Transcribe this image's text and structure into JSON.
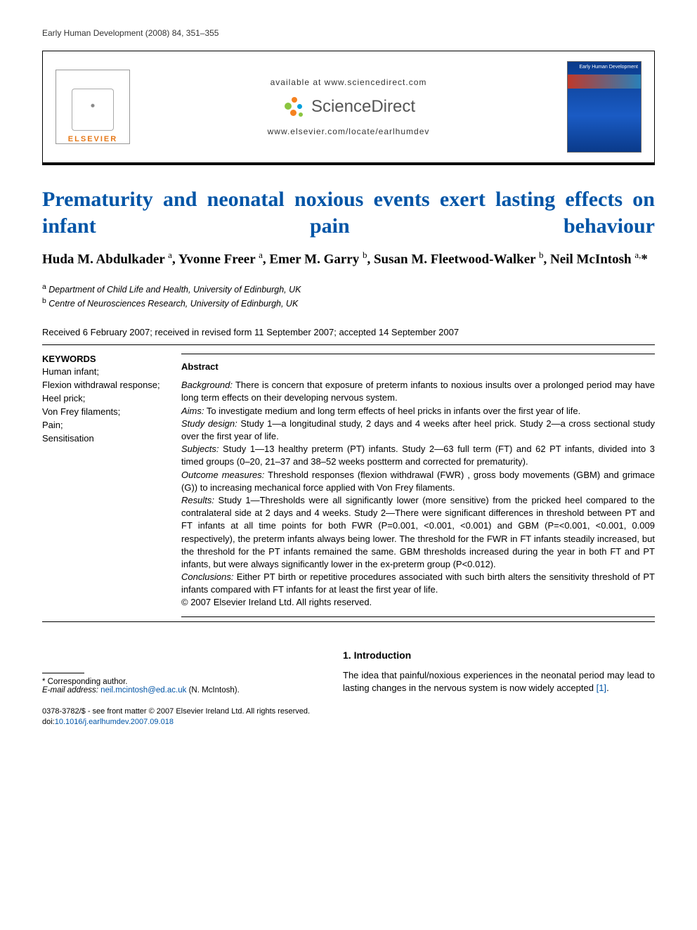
{
  "running_head": "Early Human Development (2008) 84, 351–355",
  "header": {
    "available_at": "available at www.sciencedirect.com",
    "sd_name": "ScienceDirect",
    "locate": "www.elsevier.com/locate/earlhumdev",
    "publisher_name": "ELSEVIER",
    "cover_caption": "Early Human Development",
    "sd_dot_colors": [
      "#f58220",
      "#8bc53f",
      "#00a0dc",
      "#f58220",
      "#8bc53f"
    ],
    "cover_bg": "#0a3a8a"
  },
  "title": "Prematurity and neonatal noxious events exert lasting effects on infant pain behaviour",
  "authors_html": "Huda M. Abdulkader <sup>a</sup>, Yvonne Freer <sup>a</sup>, Emer M. Garry <sup>b</sup>, Susan M. Fleetwood-Walker <sup>b</sup>, Neil McIntosh <sup>a,</sup>*",
  "affiliations": [
    {
      "marker": "a",
      "text": "Department of Child Life and Health, University of Edinburgh, UK"
    },
    {
      "marker": "b",
      "text": "Centre of Neurosciences Research, University of Edinburgh, UK"
    }
  ],
  "dates": "Received 6 February 2007; received in revised form 11 September 2007; accepted 14 September 2007",
  "keywords_head": "KEYWORDS",
  "keywords": "Human infant;\nFlexion withdrawal response;\nHeel prick;\nVon Frey filaments;\nPain;\nSensitisation",
  "abstract_head": "Abstract",
  "abstract": {
    "background_lbl": "Background:",
    "background": "There is concern that exposure of preterm infants to noxious insults over a prolonged period may have long term effects on their developing nervous system.",
    "aims_lbl": "Aims:",
    "aims": "To investigate medium and long term effects of heel pricks in infants over the first year of life.",
    "design_lbl": "Study design:",
    "design": "Study 1—a longitudinal study, 2 days and 4 weeks after heel prick. Study 2—a cross sectional study over the first year of life.",
    "subjects_lbl": "Subjects:",
    "subjects": "Study 1—13 healthy preterm (PT) infants. Study 2—63 full term (FT) and 62 PT infants, divided into 3 timed groups (0–20, 21–37 and 38–52 weeks postterm and corrected for prematurity).",
    "outcome_lbl": "Outcome measures:",
    "outcome": "Threshold responses (flexion withdrawal (FWR) , gross body movements (GBM) and grimace (G)) to increasing mechanical force applied with Von Frey filaments.",
    "results_lbl": "Results:",
    "results": "Study 1—Thresholds were all significantly lower (more sensitive) from the pricked heel compared to the contralateral side at 2 days and 4 weeks. Study 2—There were significant differences in threshold between PT and FT infants at all time points for both FWR (P=0.001, <0.001, <0.001) and GBM (P=<0.001, <0.001, 0.009 respectively), the preterm infants always being lower. The threshold for the FWR in FT infants steadily increased, but the threshold for the PT infants remained the same. GBM thresholds increased during the year in both FT and PT infants, but were always significantly lower in the ex-preterm group (P<0.012).",
    "conclusions_lbl": "Conclusions:",
    "conclusions": "Either PT birth or repetitive procedures associated with such birth alters the sensitivity threshold of PT infants compared with FT infants for at least the first year of life.",
    "copyright": "© 2007 Elsevier Ireland Ltd. All rights reserved."
  },
  "section1_head": "1. Introduction",
  "intro_text": "The idea that painful/noxious experiences in the neonatal period may lead to lasting changes in the nervous system is now widely accepted ",
  "intro_ref": "[1]",
  "intro_tail": ".",
  "corresponding_lbl": "* Corresponding author.",
  "email_lbl": "E-mail address:",
  "email": "neil.mcintosh@ed.ac.uk",
  "email_who": "(N. McIntosh).",
  "footer_line1": "0378-3782/$ - see front matter © 2007 Elsevier Ireland Ltd. All rights reserved.",
  "footer_doi_lbl": "doi:",
  "footer_doi": "10.1016/j.earlhumdev.2007.09.018",
  "colors": {
    "title": "#0054a6",
    "link": "#0054a6",
    "elsevier_orange": "#e67817",
    "text": "#000000"
  },
  "fonts": {
    "title_family": "Georgia serif",
    "title_size_pt": 22,
    "authors_size_pt": 14,
    "body_size_pt": 10
  }
}
